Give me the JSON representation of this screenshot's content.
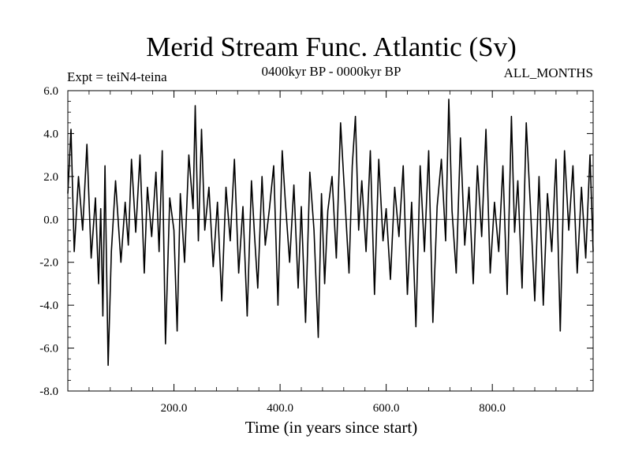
{
  "chart_data": {
    "type": "line",
    "title": "Merid Stream Func. Atlantic (Sv)",
    "subtitle": "0400kyr BP - 0000kyr BP",
    "experiment_label": "Expt = teiN4-teina",
    "season_label": "ALL_MONTHS",
    "xlabel": "Time (in years since start)",
    "ylabel": "",
    "xlim": [
      0,
      990
    ],
    "ylim": [
      -8.0,
      6.0
    ],
    "x_ticks": [
      200,
      400,
      600,
      800
    ],
    "x_tick_labels": [
      "200.0",
      "400.0",
      "600.0",
      "800.0"
    ],
    "y_ticks": [
      -8,
      -6,
      -4,
      -2,
      0,
      2,
      4,
      6
    ],
    "y_tick_labels": [
      "-8.0",
      "-6.0",
      "-4.0",
      "-2.0",
      "0.0",
      "2.0",
      "4.0",
      "6.0"
    ],
    "zero_line": true,
    "grid": false,
    "series": [
      {
        "x": [
          0,
          6,
          12,
          20,
          28,
          36,
          44,
          52,
          58,
          62,
          66,
          70,
          76,
          82,
          90,
          100,
          108,
          114,
          120,
          128,
          136,
          144,
          150,
          158,
          166,
          172,
          178,
          184,
          192,
          200,
          206,
          212,
          220,
          228,
          236,
          240,
          246,
          252,
          258,
          266,
          274,
          282,
          290,
          298,
          306,
          314,
          322,
          330,
          338,
          346,
          352,
          358,
          366,
          372,
          380,
          388,
          396,
          404,
          410,
          418,
          426,
          434,
          440,
          448,
          456,
          464,
          472,
          478,
          484,
          490,
          498,
          506,
          514,
          522,
          530,
          536,
          542,
          548,
          554,
          562,
          570,
          578,
          586,
          594,
          600,
          608,
          616,
          624,
          632,
          640,
          648,
          656,
          664,
          672,
          680,
          688,
          696,
          704,
          712,
          718,
          724,
          732,
          740,
          748,
          756,
          764,
          772,
          780,
          788,
          796,
          804,
          812,
          820,
          828,
          836,
          842,
          848,
          856,
          864,
          872,
          880,
          888,
          896,
          904,
          912,
          920,
          928,
          936,
          944,
          952,
          960,
          968,
          976,
          984,
          990
        ],
        "values": [
          1.2,
          4.2,
          -1.5,
          2.0,
          -0.5,
          3.5,
          -1.8,
          1.0,
          -3.0,
          0.5,
          -4.5,
          2.5,
          -6.8,
          -1.5,
          1.8,
          -2.0,
          0.8,
          -1.2,
          2.8,
          -0.6,
          3.0,
          -2.5,
          1.5,
          -0.8,
          2.2,
          -1.5,
          3.2,
          -5.8,
          1.0,
          -0.5,
          -5.2,
          1.2,
          -2.0,
          3.0,
          0.5,
          5.3,
          -1.0,
          4.2,
          -0.5,
          1.5,
          -2.2,
          0.8,
          -3.8,
          1.5,
          -1.0,
          2.8,
          -2.5,
          0.6,
          -4.5,
          1.8,
          -0.8,
          -3.2,
          2.0,
          -1.2,
          0.5,
          2.5,
          -4.0,
          3.2,
          0.8,
          -2.0,
          1.6,
          -3.2,
          0.6,
          -4.8,
          2.2,
          -0.5,
          -5.5,
          1.2,
          -3.0,
          0.4,
          2.0,
          -1.8,
          4.5,
          1.0,
          -2.5,
          2.5,
          4.8,
          -0.5,
          1.8,
          -1.5,
          3.2,
          -3.5,
          2.8,
          -1.0,
          0.5,
          -2.8,
          1.5,
          -0.8,
          2.5,
          -3.5,
          0.8,
          -5.0,
          2.5,
          -1.5,
          3.2,
          -4.8,
          0.6,
          2.8,
          -1.0,
          5.6,
          0.4,
          -2.5,
          3.8,
          -1.2,
          1.5,
          -3.0,
          2.5,
          -0.8,
          4.2,
          -2.5,
          0.8,
          -1.5,
          2.5,
          -3.5,
          4.8,
          -0.6,
          1.8,
          -3.2,
          4.5,
          0.5,
          -3.8,
          2.0,
          -4.0,
          1.2,
          -1.5,
          2.8,
          -5.2,
          3.2,
          -0.5,
          2.5,
          -2.5,
          1.5,
          -1.8,
          3.0,
          -1.5
        ]
      }
    ]
  }
}
